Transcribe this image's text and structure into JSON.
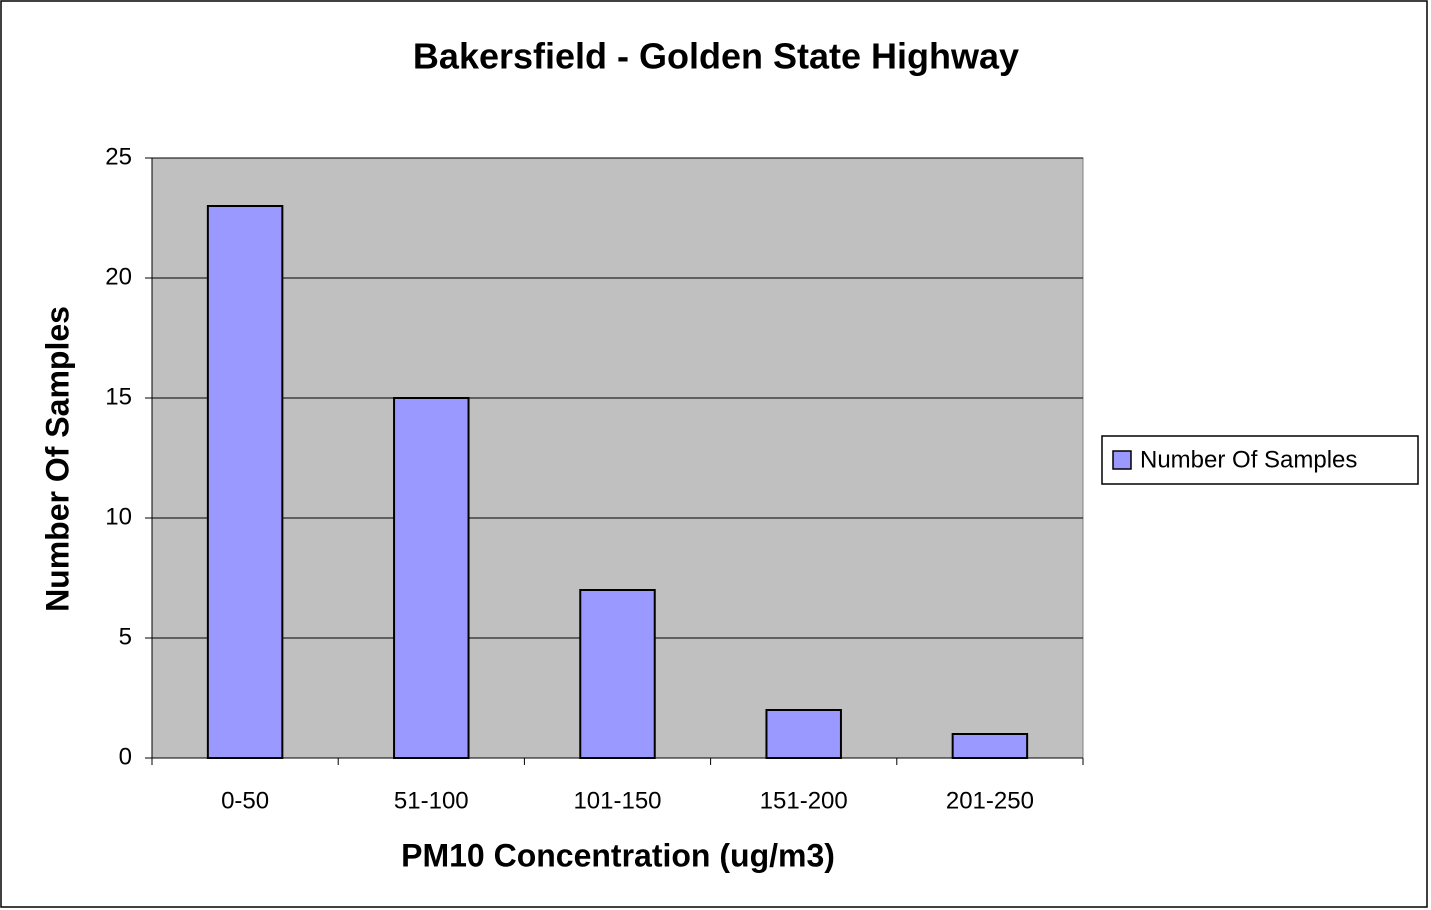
{
  "chart_data": {
    "type": "bar",
    "title": "Bakersfield - Golden State Highway",
    "x_label": "PM10 Concentration (ug/m3)",
    "y_label": "Number Of Samples",
    "categories": [
      "0-50",
      "51-100",
      "101-150",
      "151-200",
      "201-250"
    ],
    "series": [
      {
        "name": "Number Of Samples",
        "color": "#9999ff",
        "values": [
          23,
          15,
          7,
          2,
          1
        ]
      }
    ],
    "ylim": [
      0,
      25
    ],
    "yticks": [
      0,
      5,
      10,
      15,
      20,
      25
    ],
    "grid": true,
    "legend": "right"
  }
}
